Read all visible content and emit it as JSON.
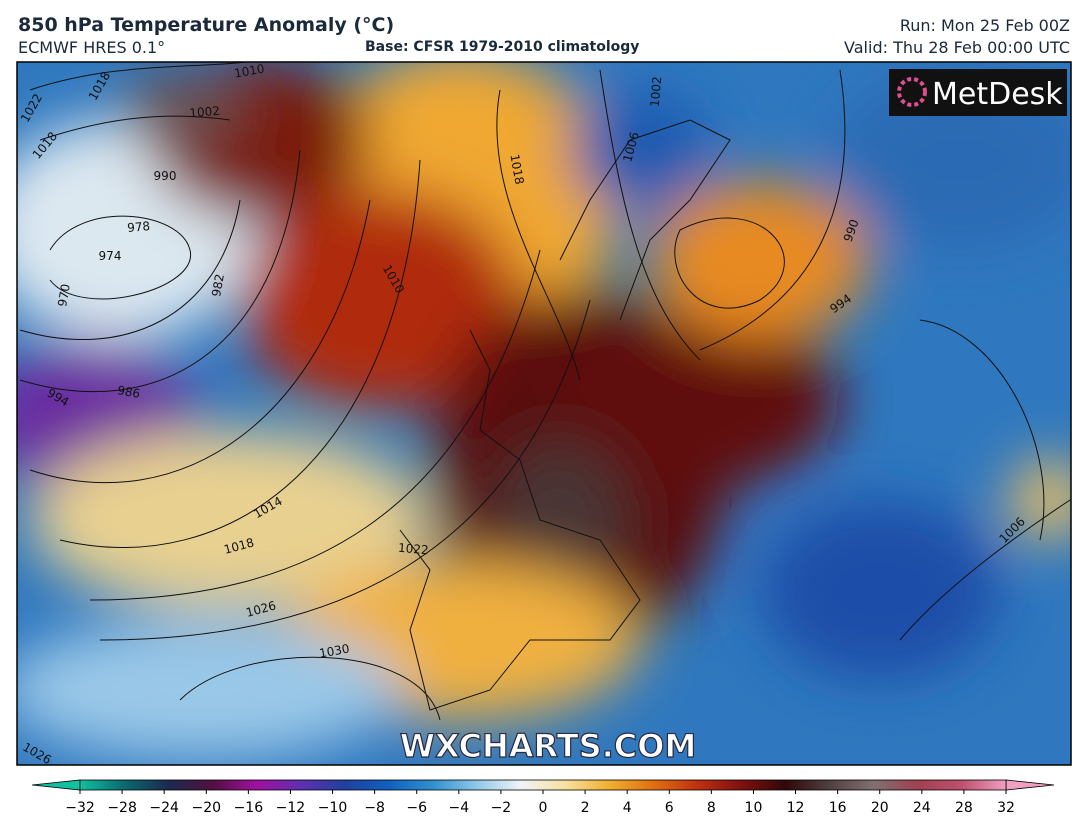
{
  "header": {
    "title": "850 hPa Temperature Anomaly (°C)",
    "model": "ECMWF HRES 0.1°",
    "base": "Base: CFSR 1979-2010 climatology",
    "run": "Run: Mon 25 Feb 00Z",
    "valid": "Valid: Thu 28 Feb 00:00 UTC"
  },
  "logo": "MetDesk",
  "watermark": "WXCHARTS.COM",
  "isobar_labels": [
    "1010",
    "1002",
    "1018",
    "1022",
    "1018",
    "990",
    "978",
    "974",
    "970",
    "982",
    "986",
    "994",
    "1010",
    "1018",
    "1014",
    "1018",
    "1022",
    "1026",
    "1030",
    "1026",
    "1006",
    "1002",
    "990",
    "994",
    "1006"
  ],
  "colorbar": {
    "ticks": [
      {
        "value": -32,
        "label": "−32"
      },
      {
        "value": -28,
        "label": "−28"
      },
      {
        "value": -24,
        "label": "−24"
      },
      {
        "value": -20,
        "label": "−20"
      },
      {
        "value": -16,
        "label": "−16"
      },
      {
        "value": -12,
        "label": "−12"
      },
      {
        "value": -10,
        "label": "−10"
      },
      {
        "value": -8,
        "label": "−8"
      },
      {
        "value": -6,
        "label": "−6"
      },
      {
        "value": -4,
        "label": "−4"
      },
      {
        "value": -2,
        "label": "−2"
      },
      0,
      2,
      4,
      6,
      8,
      10,
      12,
      16,
      20,
      24,
      28,
      32
    ],
    "colors": [
      "#10c0a0",
      "#0a6a70",
      "#1a2a50",
      "#501040",
      "#a010a0",
      "#6030b0",
      "#2040a0",
      "#1060c0",
      "#3090d0",
      "#90c8e8",
      "#f0f4f8",
      "#f8e0a0",
      "#f0b030",
      "#e07010",
      "#c03010",
      "#801010",
      "#300808",
      "#504040",
      "#807070",
      "#a04050",
      "#c05070",
      "#f0a0c0"
    ]
  }
}
